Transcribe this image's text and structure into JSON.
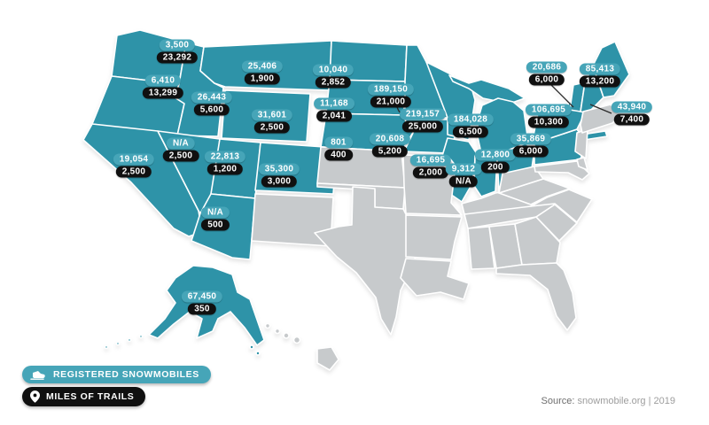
{
  "map": {
    "data_color": "#2e93a8",
    "no_data_color": "#c7cacc",
    "border_color": "#ffffff",
    "states": [
      {
        "id": "WA",
        "name": "Washington",
        "registered_snowmobiles": "3,500",
        "miles_of_trails": "23,292"
      },
      {
        "id": "OR",
        "name": "Oregon",
        "registered_snowmobiles": "6,410",
        "miles_of_trails": "13,299"
      },
      {
        "id": "CA",
        "name": "California",
        "registered_snowmobiles": "19,054",
        "miles_of_trails": "2,500"
      },
      {
        "id": "ID",
        "name": "Idaho",
        "registered_snowmobiles": "26,443",
        "miles_of_trails": "5,600"
      },
      {
        "id": "NV",
        "name": "Nevada",
        "registered_snowmobiles": "N/A",
        "miles_of_trails": "2,500"
      },
      {
        "id": "UT",
        "name": "Utah",
        "registered_snowmobiles": "22,813",
        "miles_of_trails": "1,200"
      },
      {
        "id": "AZ",
        "name": "Arizona",
        "registered_snowmobiles": "N/A",
        "miles_of_trails": "500"
      },
      {
        "id": "MT",
        "name": "Montana",
        "registered_snowmobiles": "25,406",
        "miles_of_trails": "1,900"
      },
      {
        "id": "WY",
        "name": "Wyoming",
        "registered_snowmobiles": "31,601",
        "miles_of_trails": "2,500"
      },
      {
        "id": "CO",
        "name": "Colorado",
        "registered_snowmobiles": "35,300",
        "miles_of_trails": "3,000"
      },
      {
        "id": "ND",
        "name": "North Dakota",
        "registered_snowmobiles": "10,040",
        "miles_of_trails": "2,852"
      },
      {
        "id": "SD",
        "name": "South Dakota",
        "registered_snowmobiles": "11,168",
        "miles_of_trails": "2,041"
      },
      {
        "id": "NE",
        "name": "Nebraska",
        "registered_snowmobiles": "801",
        "miles_of_trails": "400"
      },
      {
        "id": "MN",
        "name": "Minnesota",
        "registered_snowmobiles": "189,150",
        "miles_of_trails": "21,000"
      },
      {
        "id": "IA",
        "name": "Iowa",
        "registered_snowmobiles": "20,608",
        "miles_of_trails": "5,200"
      },
      {
        "id": "WI",
        "name": "Wisconsin",
        "registered_snowmobiles": "219,157",
        "miles_of_trails": "25,000"
      },
      {
        "id": "IL",
        "name": "Illinois",
        "registered_snowmobiles": "16,695",
        "miles_of_trails": "2,000"
      },
      {
        "id": "MI",
        "name": "Michigan",
        "registered_snowmobiles": "184,028",
        "miles_of_trails": "6,500"
      },
      {
        "id": "IN",
        "name": "Indiana",
        "registered_snowmobiles": "9,312",
        "miles_of_trails": "N/A"
      },
      {
        "id": "OH",
        "name": "Ohio",
        "registered_snowmobiles": "12,800",
        "miles_of_trails": "200"
      },
      {
        "id": "PA",
        "name": "Pennsylvania",
        "registered_snowmobiles": "35,869",
        "miles_of_trails": "6,000"
      },
      {
        "id": "NY",
        "name": "New York",
        "registered_snowmobiles": "106,695",
        "miles_of_trails": "10,300"
      },
      {
        "id": "VT",
        "name": "Vermont",
        "registered_snowmobiles": "20,686",
        "miles_of_trails": "6,000"
      },
      {
        "id": "NH",
        "name": "New Hampshire",
        "registered_snowmobiles": "43,940",
        "miles_of_trails": "7,400"
      },
      {
        "id": "ME",
        "name": "Maine",
        "registered_snowmobiles": "85,413",
        "miles_of_trails": "13,200"
      },
      {
        "id": "AK",
        "name": "Alaska",
        "registered_snowmobiles": "67,450",
        "miles_of_trails": "350"
      }
    ]
  },
  "colors": {
    "value_pill_teal": "#46a5b8",
    "value_pill_black": "#101010"
  },
  "legend": {
    "registered_label": "REGISTERED SNOWMOBILES",
    "trails_label": "MILES OF TRAILS"
  },
  "source": {
    "prefix": "Source:",
    "text": "snowmobile.org | 2019"
  }
}
